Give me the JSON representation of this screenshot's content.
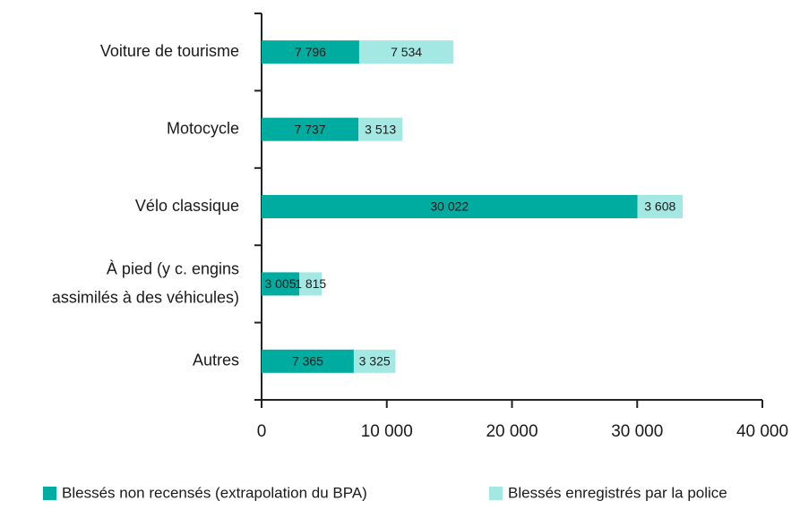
{
  "chart_data": {
    "type": "stacked-barh",
    "categories": [
      "Voiture de tourisme",
      "Motocycle",
      "Vélo classique",
      "À pied (y c. engins assimilés à des véhicules)",
      "Autres"
    ],
    "series": [
      {
        "name": "Blessés non recensés (extrapolation du BPA)",
        "color": "#00ab9f",
        "values": [
          7796,
          7737,
          30022,
          3005,
          7365
        ],
        "value_labels": [
          "7 796",
          "7 737",
          "30 022",
          "3 005",
          "7 365"
        ]
      },
      {
        "name": "Blessés enregistrés par la police",
        "color": "#a3e8e3",
        "values": [
          7534,
          3513,
          3608,
          1815,
          3325
        ],
        "value_labels": [
          "7 534",
          "3 513",
          "3 608",
          "1 815",
          "3 325"
        ]
      }
    ],
    "xlim": [
      0,
      40000
    ],
    "xticks": [
      0,
      {
        "value": 10000,
        "label": "10 000"
      },
      {
        "value": 20000,
        "label": "20 000"
      },
      {
        "value": 30000,
        "label": "30 000"
      },
      {
        "value": 40000,
        "label": "40 000"
      }
    ],
    "legend": "bottom"
  }
}
